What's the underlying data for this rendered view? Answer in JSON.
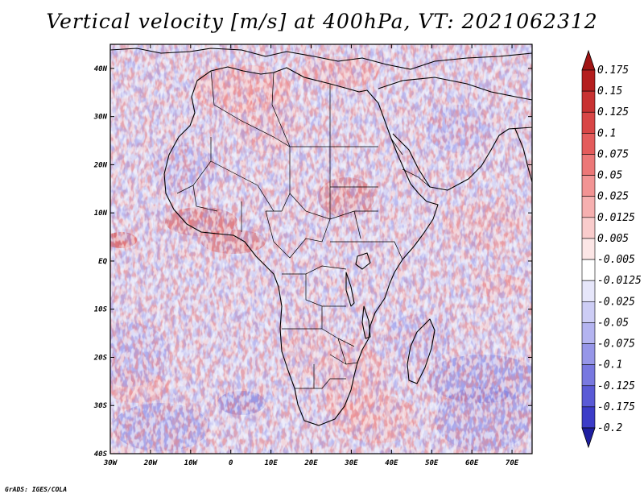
{
  "title": "Vertical velocity [m/s] at 400hPa, VT: 2021062312",
  "credit": "GrADS: IGES/COLA",
  "map": {
    "lon_range": [
      -30,
      75
    ],
    "lat_range": [
      -40,
      45
    ],
    "lat_ticks": [
      {
        "value": 40,
        "label": "40N"
      },
      {
        "value": 30,
        "label": "30N"
      },
      {
        "value": 20,
        "label": "20N"
      },
      {
        "value": 10,
        "label": "10N"
      },
      {
        "value": 0,
        "label": "EQ"
      },
      {
        "value": -10,
        "label": "10S"
      },
      {
        "value": -20,
        "label": "20S"
      },
      {
        "value": -30,
        "label": "30S"
      },
      {
        "value": -40,
        "label": "40S"
      }
    ],
    "lon_ticks": [
      {
        "value": -30,
        "label": "30W"
      },
      {
        "value": -20,
        "label": "20W"
      },
      {
        "value": -10,
        "label": "10W"
      },
      {
        "value": 0,
        "label": "0"
      },
      {
        "value": 10,
        "label": "10E"
      },
      {
        "value": 20,
        "label": "20E"
      },
      {
        "value": 30,
        "label": "30E"
      },
      {
        "value": 40,
        "label": "40E"
      },
      {
        "value": 50,
        "label": "50E"
      },
      {
        "value": 60,
        "label": "60E"
      },
      {
        "value": 70,
        "label": "70E"
      }
    ]
  },
  "colorbar": {
    "levels": [
      {
        "label": "0.175",
        "color": "#b41e1e"
      },
      {
        "label": "0.15",
        "color": "#c83232"
      },
      {
        "label": "0.125",
        "color": "#d84646"
      },
      {
        "label": "0.1",
        "color": "#e45c5c"
      },
      {
        "label": "0.075",
        "color": "#ec7878"
      },
      {
        "label": "0.05",
        "color": "#f29494"
      },
      {
        "label": "0.025",
        "color": "#f6b0b0"
      },
      {
        "label": "0.0125",
        "color": "#f9cccc"
      },
      {
        "label": "0.005",
        "color": "#fce6e6"
      },
      {
        "label": "-0.005",
        "color": "#ffffff"
      },
      {
        "label": "-0.0125",
        "color": "#e6e6fa"
      },
      {
        "label": "-0.025",
        "color": "#cdcdf5"
      },
      {
        "label": "-0.05",
        "color": "#b4b4f0"
      },
      {
        "label": "-0.075",
        "color": "#9696e8"
      },
      {
        "label": "-0.1",
        "color": "#7878e0"
      },
      {
        "label": "-0.125",
        "color": "#5a5ad6"
      },
      {
        "label": "-0.175",
        "color": "#3c3cc8"
      },
      {
        "label": "-0.2",
        "color": "#2828b4"
      }
    ],
    "top_color": "#a01414",
    "bottom_color": "#1e1ea0"
  },
  "field_colors": {
    "background": "#d9d8f4",
    "strong_up": "#d24646",
    "weak_up": "#f2a6a6",
    "weak_down": "#9c9cea",
    "strong_down": "#5a5ad6"
  }
}
